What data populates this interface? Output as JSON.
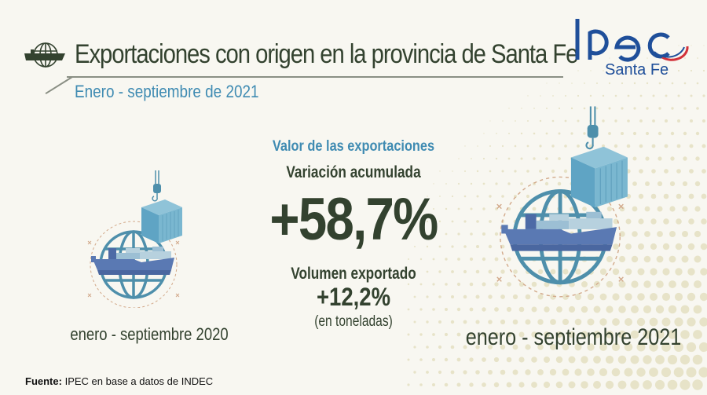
{
  "header": {
    "title": "Exportaciones con origen en la provincia de Santa Fe",
    "subtitle": "Enero - septiembre de 2021",
    "title_icon": "ship-globe-icon"
  },
  "logo": {
    "name": "Ipec",
    "subtitle": "Santa Fe"
  },
  "main": {
    "value_heading": "Valor de las exportaciones",
    "variation_label": "Variación acumulada",
    "variation_value": "+58,7%",
    "volume_label": "Volumen exportado",
    "volume_value": "+12,2%",
    "volume_unit": "(en toneladas)"
  },
  "illustrations": {
    "left_period": "enero - septiembre 2020",
    "right_period": "enero - septiembre 2021",
    "icon": "globe-ship-container-icon"
  },
  "footer": {
    "source_label": "Fuente:",
    "source_text": "IPEC en base a datos de INDEC"
  },
  "colors": {
    "background": "#f8f7f1",
    "dark_text": "#33422f",
    "accent_blue": "#3f8bb2",
    "logo_blue": "#1f4f9a",
    "logo_red": "#d2323a",
    "globe": "#4e8fab",
    "ship": "#5a79b3",
    "container": "#5fa4c4"
  }
}
